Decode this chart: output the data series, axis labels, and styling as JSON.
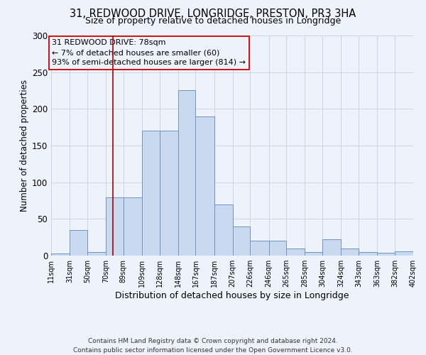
{
  "title1": "31, REDWOOD DRIVE, LONGRIDGE, PRESTON, PR3 3HA",
  "title2": "Size of property relative to detached houses in Longridge",
  "xlabel": "Distribution of detached houses by size in Longridge",
  "ylabel": "Number of detached properties",
  "bin_edges": [
    11,
    31,
    50,
    70,
    89,
    109,
    128,
    148,
    167,
    187,
    207,
    226,
    246,
    265,
    285,
    304,
    324,
    343,
    363,
    382,
    402
  ],
  "bar_heights": [
    3,
    35,
    5,
    79,
    79,
    170,
    170,
    225,
    190,
    70,
    40,
    20,
    20,
    10,
    5,
    22,
    10,
    5,
    4,
    6
  ],
  "bar_facecolor": "#c9d9f0",
  "bar_edgecolor": "#7094c0",
  "vline_color": "#aa0000",
  "vline_x": 78,
  "annotation_title": "31 REDWOOD DRIVE: 78sqm",
  "annotation_line1": "← 7% of detached houses are smaller (60)",
  "annotation_line2": "93% of semi-detached houses are larger (814) →",
  "annotation_box_edgecolor": "#cc0000",
  "ylim": [
    0,
    300
  ],
  "yticks": [
    0,
    50,
    100,
    150,
    200,
    250,
    300
  ],
  "tick_labels": [
    "11sqm",
    "31sqm",
    "50sqm",
    "70sqm",
    "89sqm",
    "109sqm",
    "128sqm",
    "148sqm",
    "167sqm",
    "187sqm",
    "207sqm",
    "226sqm",
    "246sqm",
    "265sqm",
    "285sqm",
    "304sqm",
    "324sqm",
    "343sqm",
    "363sqm",
    "382sqm",
    "402sqm"
  ],
  "footer1": "Contains HM Land Registry data © Crown copyright and database right 2024.",
  "footer2": "Contains public sector information licensed under the Open Government Licence v3.0.",
  "bg_color": "#eef2fb",
  "grid_color": "#c8d0e0",
  "title1_fontsize": 10.5,
  "title2_fontsize": 9,
  "ylabel_fontsize": 8.5,
  "xlabel_fontsize": 9,
  "ytick_fontsize": 8.5,
  "xtick_fontsize": 7,
  "annot_fontsize": 8,
  "footer_fontsize": 6.5
}
